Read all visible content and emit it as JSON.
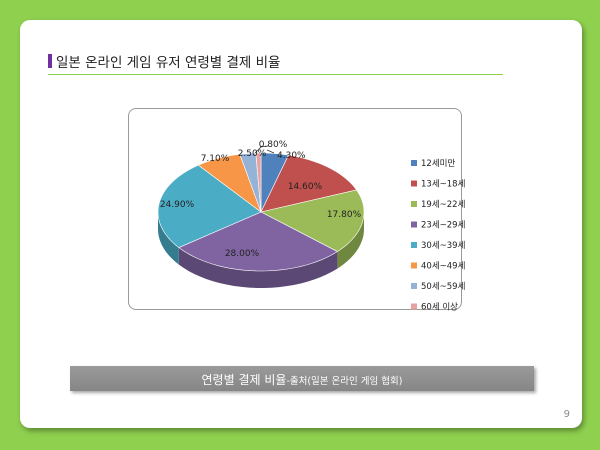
{
  "slide": {
    "title": "일본 온라인 게임 유저 연령별 결제 비율",
    "caption_main": "연령별 결제 비율",
    "caption_sub": "-출처(일본 온라인 게임 협회)",
    "page_number": "9",
    "colors": {
      "background": "#8fd14f",
      "title_marker": "#7030a0",
      "caption_bar": "#8f8f8f"
    }
  },
  "chart_data": {
    "type": "pie",
    "style": "3d",
    "legend_position": "right",
    "categories": [
      "12세미만",
      "13세~18세",
      "19세~22세",
      "23세~29세",
      "30세~39세",
      "40세~49세",
      "50세~59세",
      "60세 이상"
    ],
    "values": [
      4.3,
      14.6,
      17.8,
      28.0,
      24.9,
      7.1,
      2.5,
      0.8
    ],
    "data_labels": [
      "4.30%",
      "14.60%",
      "17.80%",
      "28.00%",
      "24.90%",
      "7.10%",
      "2.50%",
      "0.80%"
    ],
    "colors": [
      "#4f81bd",
      "#c0504d",
      "#9bbb59",
      "#8064a2",
      "#4bacc6",
      "#f79646",
      "#95b3d7",
      "#e6a2a0"
    ]
  }
}
